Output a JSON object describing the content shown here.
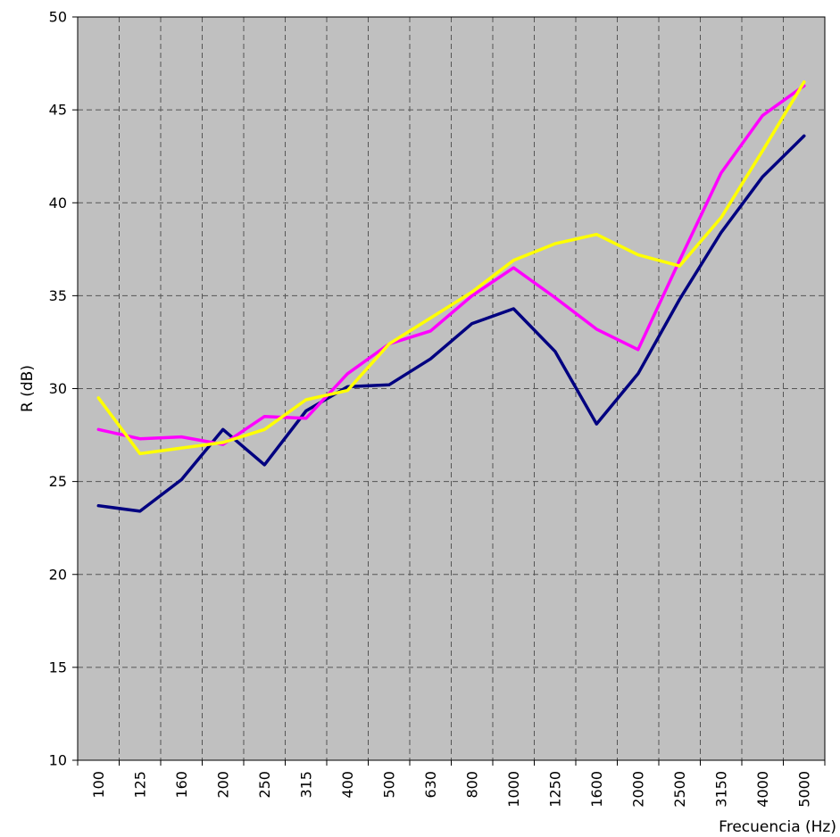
{
  "chart_data": {
    "type": "line",
    "xlabel": "Frecuencia (Hz)",
    "ylabel": "R (dB)",
    "categories": [
      "100",
      "125",
      "160",
      "200",
      "250",
      "315",
      "400",
      "500",
      "630",
      "800",
      "1000",
      "1250",
      "1600",
      "2000",
      "2500",
      "3150",
      "4000",
      "5000"
    ],
    "ylim": [
      10,
      50
    ],
    "yticks": [
      10,
      15,
      20,
      25,
      30,
      35,
      40,
      45,
      50
    ],
    "grid": true,
    "legend": "none",
    "plot_background": "#c0c0c0",
    "series": [
      {
        "color": "#000080",
        "values": [
          23.7,
          23.4,
          25.1,
          27.8,
          25.9,
          28.8,
          30.1,
          30.2,
          31.6,
          33.5,
          34.3,
          32.0,
          28.1,
          30.8,
          34.8,
          38.4,
          41.4,
          43.6
        ]
      },
      {
        "color": "#ff00ff",
        "values": [
          27.8,
          27.3,
          27.4,
          27.0,
          28.5,
          28.4,
          30.8,
          32.4,
          33.1,
          35.0,
          36.5,
          34.9,
          33.2,
          32.1,
          36.9,
          41.6,
          44.7,
          46.3
        ]
      },
      {
        "color": "#ffff00",
        "values": [
          29.5,
          26.5,
          26.8,
          27.1,
          27.8,
          29.4,
          29.9,
          32.4,
          33.8,
          35.2,
          36.9,
          37.8,
          38.3,
          37.2,
          36.6,
          39.2,
          42.8,
          46.5
        ]
      }
    ]
  }
}
